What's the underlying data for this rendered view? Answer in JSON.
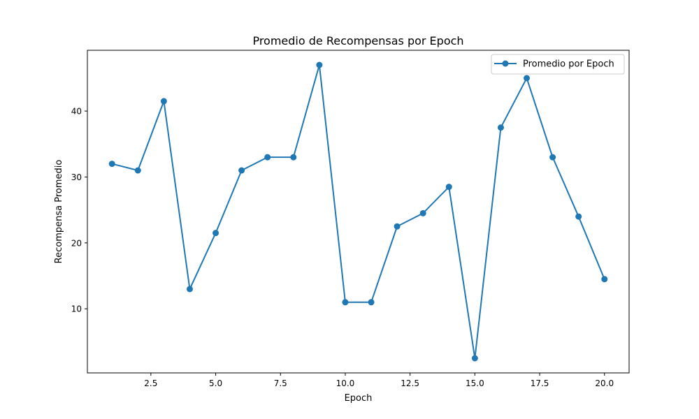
{
  "chart_data": {
    "type": "line",
    "title": "Promedio de Recompensas por Epoch",
    "xlabel": "Epoch",
    "ylabel": "Recompensa Promedio",
    "xlim": [
      0.05,
      20.95
    ],
    "ylim": [
      0.275,
      49.225
    ],
    "xticks": [
      "2.5",
      "5.0",
      "7.5",
      "10.0",
      "12.5",
      "15.0",
      "17.5",
      "20.0"
    ],
    "yticks": [
      "10",
      "20",
      "30",
      "40"
    ],
    "grid": false,
    "legend_position": "top-right",
    "series": [
      {
        "name": "Promedio por Epoch",
        "color": "#1f77b4",
        "marker": "circle",
        "x": [
          1,
          2,
          3,
          4,
          5,
          6,
          7,
          8,
          9,
          10,
          11,
          12,
          13,
          14,
          15,
          16,
          17,
          18,
          19,
          20
        ],
        "y": [
          32,
          31,
          41.5,
          13,
          21.5,
          31,
          33,
          33,
          47,
          11,
          11,
          22.5,
          24.5,
          28.5,
          2.5,
          37.5,
          45,
          33,
          24,
          14.5
        ]
      }
    ]
  }
}
